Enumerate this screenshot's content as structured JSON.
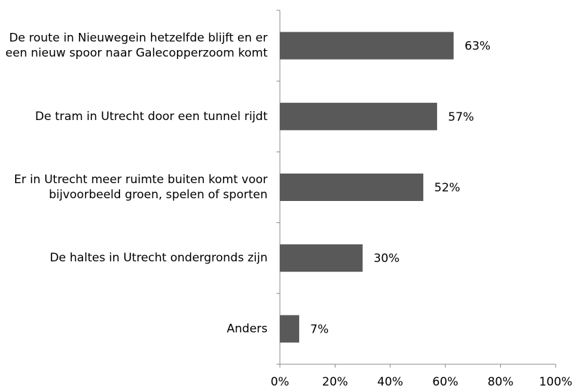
{
  "chart_data": {
    "type": "bar",
    "orientation": "horizontal",
    "categories": [
      "De route in Nieuwegein hetzelfde blijft en er een nieuw spoor naar Galecopperzoom komt",
      "De tram in Utrecht door een tunnel rijdt",
      "Er in Utrecht meer ruimte buiten komt voor bijvoorbeeld groen, spelen of sporten",
      "De haltes in Utrecht ondergronds zijn",
      "Anders"
    ],
    "values": [
      63,
      57,
      52,
      30,
      7
    ],
    "value_labels": [
      "63%",
      "57%",
      "52%",
      "30%",
      "7%"
    ],
    "color": "#595959",
    "xlim": [
      0,
      100
    ],
    "xticks": [
      {
        "value": 0,
        "label": "0%"
      },
      {
        "value": 20,
        "label": "20%"
      },
      {
        "value": 40,
        "label": "40%"
      },
      {
        "value": 60,
        "label": "60%"
      },
      {
        "value": 80,
        "label": "80%"
      },
      {
        "value": 100,
        "label": "100%"
      }
    ],
    "grid": false
  }
}
